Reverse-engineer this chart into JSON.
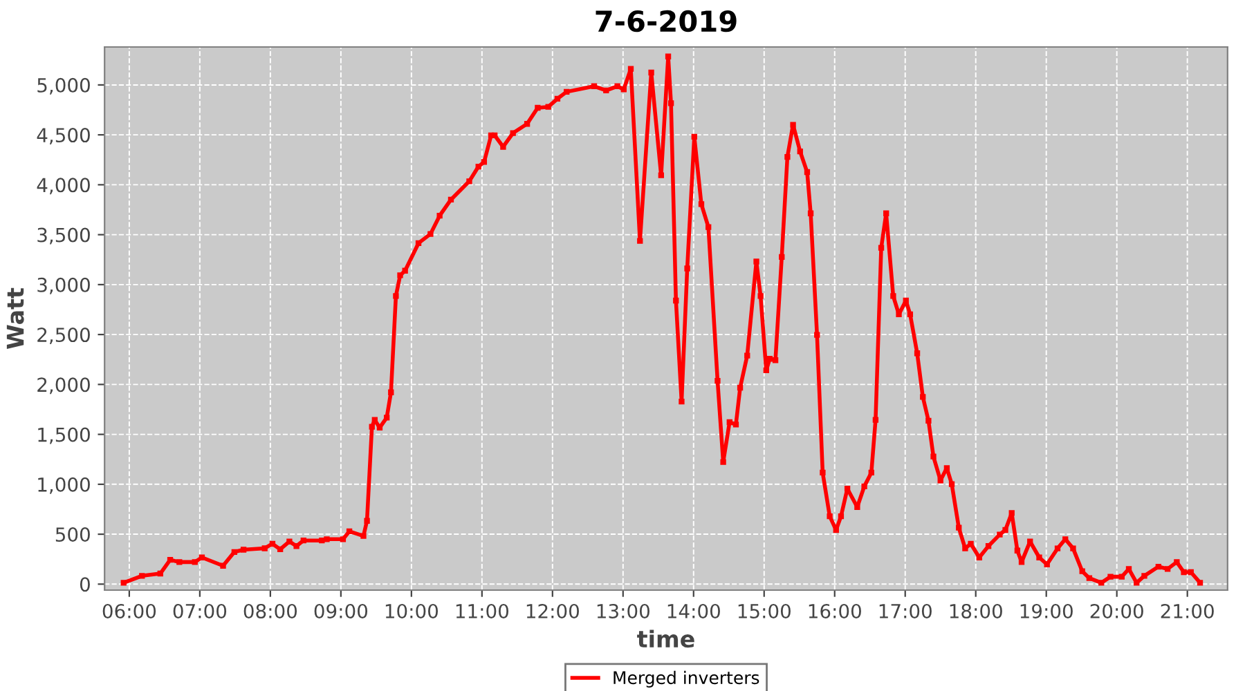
{
  "chart_data": {
    "type": "line",
    "title": "7-6-2019",
    "xlabel": "time",
    "ylabel": "Watt",
    "xlim": [
      5.65,
      21.57
    ],
    "ylim": [
      -60,
      5380
    ],
    "xticks": [
      {
        "value": 6,
        "label": "06:00"
      },
      {
        "value": 7,
        "label": "07:00"
      },
      {
        "value": 8,
        "label": "08:00"
      },
      {
        "value": 9,
        "label": "09:00"
      },
      {
        "value": 10,
        "label": "10:00"
      },
      {
        "value": 11,
        "label": "11:00"
      },
      {
        "value": 12,
        "label": "12:00"
      },
      {
        "value": 13,
        "label": "13:00"
      },
      {
        "value": 14,
        "label": "14:00"
      },
      {
        "value": 15,
        "label": "15:00"
      },
      {
        "value": 16,
        "label": "16:00"
      },
      {
        "value": 17,
        "label": "17:00"
      },
      {
        "value": 18,
        "label": "18:00"
      },
      {
        "value": 19,
        "label": "19:00"
      },
      {
        "value": 20,
        "label": "20:00"
      },
      {
        "value": 21,
        "label": "21:00"
      }
    ],
    "yticks": [
      0,
      {
        "value": 500,
        "label": "500"
      },
      {
        "value": 1000,
        "label": "1,000"
      },
      {
        "value": 1500,
        "label": "1,500"
      },
      {
        "value": 2000,
        "label": "2,000"
      },
      {
        "value": 2500,
        "label": "2,500"
      },
      {
        "value": 3000,
        "label": "3,000"
      },
      {
        "value": 3500,
        "label": "3,500"
      },
      {
        "value": 4000,
        "label": "4,000"
      },
      {
        "value": 4500,
        "label": "4,500"
      },
      {
        "value": 5000,
        "label": "5,000"
      }
    ],
    "grid": true,
    "legend": "bottom",
    "marker": "square",
    "line_style": "solid",
    "series": [
      {
        "name": "Merged inverters",
        "color": "#ff0000",
        "x": [
          5.92,
          6.18,
          6.44,
          6.58,
          6.71,
          6.93,
          7.03,
          7.33,
          7.49,
          7.62,
          7.92,
          8.03,
          8.14,
          8.27,
          8.37,
          8.47,
          8.73,
          8.8,
          9.03,
          9.12,
          9.32,
          9.37,
          9.44,
          9.48,
          9.55,
          9.65,
          9.71,
          9.78,
          9.84,
          9.91,
          10.1,
          10.27,
          10.4,
          10.56,
          10.82,
          10.95,
          11.03,
          11.13,
          11.18,
          11.3,
          11.44,
          11.64,
          11.79,
          11.94,
          12.07,
          12.2,
          12.59,
          12.76,
          12.92,
          13.01,
          13.11,
          13.24,
          13.4,
          13.54,
          13.64,
          13.68,
          13.75,
          13.83,
          13.91,
          14.01,
          14.11,
          14.21,
          14.34,
          14.42,
          14.51,
          14.6,
          14.66,
          14.76,
          14.89,
          14.95,
          15.03,
          15.08,
          15.16,
          15.25,
          15.33,
          15.41,
          15.51,
          15.61,
          15.66,
          15.75,
          15.83,
          15.93,
          16.02,
          16.09,
          16.18,
          16.32,
          16.42,
          16.52,
          16.58,
          16.66,
          16.73,
          16.83,
          16.91,
          17.01,
          17.07,
          17.17,
          17.25,
          17.33,
          17.4,
          17.5,
          17.59,
          17.66,
          17.76,
          17.85,
          17.93,
          18.05,
          18.18,
          18.34,
          18.42,
          18.51,
          18.59,
          18.65,
          18.77,
          18.9,
          19.01,
          19.16,
          19.27,
          19.38,
          19.51,
          19.61,
          19.78,
          19.91,
          20.07,
          20.17,
          20.28,
          20.39,
          20.59,
          20.72,
          20.85,
          20.95,
          21.05,
          21.18
        ],
        "values": [
          14,
          83,
          106,
          244,
          221,
          221,
          267,
          184,
          322,
          345,
          359,
          404,
          349,
          427,
          381,
          437,
          437,
          450,
          450,
          529,
          483,
          634,
          1576,
          1645,
          1567,
          1668,
          1921,
          2886,
          3093,
          3139,
          3415,
          3507,
          3690,
          3851,
          4035,
          4182,
          4228,
          4495,
          4495,
          4380,
          4518,
          4610,
          4771,
          4780,
          4862,
          4931,
          4987,
          4945,
          4987,
          4955,
          5161,
          3438,
          5124,
          4095,
          5285,
          4817,
          2840,
          1829,
          3162,
          4481,
          3806,
          3576,
          2036,
          1223,
          1622,
          1599,
          1967,
          2289,
          3231,
          2886,
          2142,
          2257,
          2243,
          3277,
          4279,
          4601,
          4334,
          4127,
          3714,
          2496,
          1117,
          680,
          542,
          680,
          956,
          772,
          979,
          1117,
          1645,
          3369,
          3714,
          2886,
          2702,
          2840,
          2702,
          2312,
          1875,
          1636,
          1278,
          1039,
          1163,
          1002,
          565,
          358,
          404,
          267,
          381,
          496,
          542,
          712,
          336,
          221,
          427,
          267,
          198,
          358,
          450,
          358,
          129,
          60,
          14,
          74,
          74,
          152,
          14,
          83,
          175,
          152,
          221,
          120,
          120,
          14
        ]
      }
    ]
  }
}
